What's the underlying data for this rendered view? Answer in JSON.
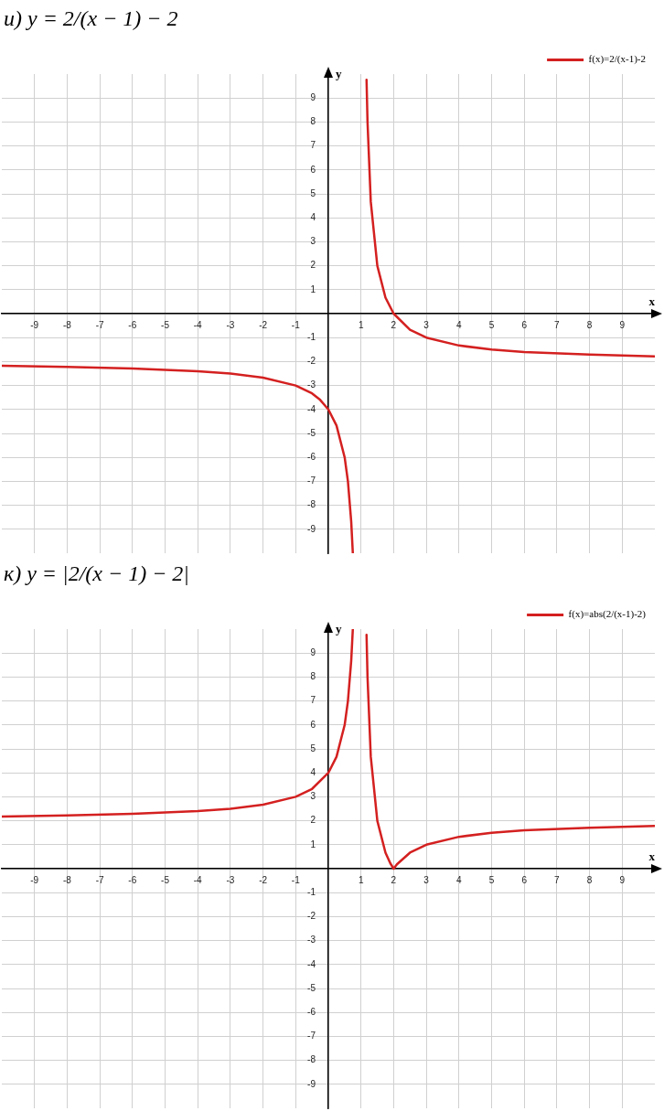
{
  "chart_data": [
    {
      "type": "line",
      "title": "и) y = 2/(x − 1) − 2",
      "xlabel": "x",
      "ylabel": "y",
      "xlim": [
        -10,
        10
      ],
      "ylim": [
        -10,
        10
      ],
      "xticks": [
        -9,
        -8,
        -7,
        -6,
        -5,
        -4,
        -3,
        -2,
        -1,
        {
          "value": 0,
          "label": null
        },
        1,
        2,
        3,
        4,
        5,
        6,
        7,
        8,
        9
      ],
      "yticks": [
        -9,
        -8,
        -7,
        -6,
        -5,
        -4,
        -3,
        -2,
        -1,
        {
          "value": 0,
          "label": null
        },
        1,
        2,
        3,
        4,
        5,
        6,
        7,
        8,
        9
      ],
      "grid": true,
      "legend": "top right",
      "marker": "none",
      "line_style": "solid",
      "series": [
        {
          "name": "f(x)=2/(x-1)-2",
          "color": "#d42020",
          "x": [
            -10,
            -8,
            -6,
            -4,
            -3,
            -2,
            -1,
            -0.5,
            -0.25,
            0,
            0.25,
            0.5,
            0.6,
            0.7,
            0.75,
            1,
            1.17,
            1.2,
            1.3,
            1.5,
            1.75,
            2,
            2.5,
            3,
            4,
            5,
            6,
            8,
            10
          ],
          "values": [
            -2.18,
            -2.22,
            -2.29,
            -2.4,
            -2.5,
            -2.67,
            -3,
            -3.33,
            -3.6,
            -4,
            -4.67,
            -6,
            -7,
            -8.67,
            -10,
            null,
            9.76,
            8,
            4.67,
            2,
            0.67,
            0,
            -0.67,
            -1,
            -1.33,
            -1.5,
            -1.6,
            -1.71,
            -1.78
          ]
        }
      ]
    },
    {
      "type": "line",
      "title": "к) y = |2/(x − 1) − 2|",
      "xlabel": "x",
      "ylabel": "y",
      "xlim": [
        -10,
        10
      ],
      "ylim": [
        -10,
        10
      ],
      "xticks": [
        -9,
        -8,
        -7,
        -6,
        -5,
        -4,
        -3,
        -2,
        -1,
        {
          "value": 0,
          "label": null
        },
        1,
        2,
        3,
        4,
        5,
        6,
        7,
        8,
        9
      ],
      "yticks": [
        -9,
        -8,
        -7,
        -6,
        -5,
        -4,
        -3,
        -2,
        -1,
        {
          "value": 0,
          "label": null
        },
        1,
        2,
        3,
        4,
        5,
        6,
        7,
        8,
        9
      ],
      "grid": true,
      "legend": "top right",
      "marker": "none",
      "line_style": "solid",
      "series": [
        {
          "name": "f(x)=abs(2/(x-1)-2)",
          "color": "#d42020",
          "x": [
            -10,
            -8,
            -6,
            -4,
            -3,
            -2,
            -1,
            -0.5,
            0,
            0.25,
            0.5,
            0.6,
            0.7,
            0.75,
            1,
            1.17,
            1.2,
            1.3,
            1.5,
            1.75,
            1.9,
            2,
            2.1,
            2.5,
            3,
            4,
            5,
            6,
            8,
            10
          ],
          "values": [
            2.18,
            2.22,
            2.29,
            2.4,
            2.5,
            2.67,
            3,
            3.33,
            4,
            4.67,
            6,
            7,
            8.67,
            10,
            null,
            9.76,
            8,
            4.67,
            2,
            0.67,
            0.22,
            0,
            0.18,
            0.67,
            1,
            1.33,
            1.5,
            1.6,
            1.71,
            1.78
          ]
        }
      ]
    }
  ]
}
